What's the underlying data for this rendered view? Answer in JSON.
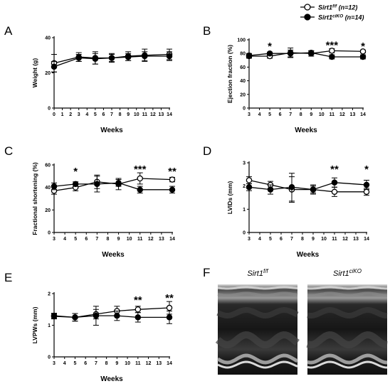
{
  "legend": [
    {
      "name": "Sirt1",
      "sup": "f/f",
      "suffix": " (n=12)",
      "marker": "open"
    },
    {
      "name": "Sirt1",
      "sup": "ciKO",
      "suffix": " (n=14)",
      "marker": "filled"
    }
  ],
  "echo": {
    "label": "F",
    "titles": [
      {
        "name": "Sirt1",
        "sup": "f/f"
      },
      {
        "name": "Sirt1",
        "sup": "ciKO"
      }
    ]
  },
  "chart_data": [
    {
      "label": "A",
      "type": "line",
      "ylabel": "Weight (g)",
      "xlabel": "Weeks",
      "ylim": [
        0,
        40
      ],
      "yticks": [
        0,
        20,
        40
      ],
      "xlim": [
        0,
        14
      ],
      "xticks": [
        0,
        1,
        2,
        3,
        4,
        5,
        6,
        7,
        8,
        9,
        10,
        11,
        12,
        13,
        14
      ],
      "x": [
        0,
        3,
        5,
        7,
        9,
        11,
        14
      ],
      "series": [
        {
          "name": "Sirt1 f/f",
          "marker": "open",
          "values": [
            25.5,
            29,
            28.5,
            28.5,
            29.5,
            30,
            30.5
          ],
          "errors": [
            5,
            2.5,
            3.5,
            2.5,
            2.5,
            3.5,
            3
          ]
        },
        {
          "name": "Sirt1 ciKO",
          "marker": "filled",
          "values": [
            23.5,
            28.5,
            28,
            28.5,
            29,
            29.5,
            29.5
          ],
          "errors": [
            3,
            2,
            3,
            2,
            2,
            2.5,
            2.5
          ]
        }
      ],
      "stars": []
    },
    {
      "label": "B",
      "type": "line",
      "ylabel": "Ejection fraction (%)",
      "xlabel": "Weeks",
      "ylim": [
        0,
        100
      ],
      "yticks": [
        0,
        20,
        40,
        60,
        80,
        100
      ],
      "xlim": [
        3,
        14
      ],
      "xticks": [
        3,
        4,
        5,
        6,
        7,
        8,
        9,
        10,
        11,
        12,
        13,
        14
      ],
      "x": [
        3,
        5,
        7,
        9,
        11,
        14
      ],
      "series": [
        {
          "name": "Sirt1 f/f",
          "marker": "open",
          "values": [
            76,
            76,
            81,
            80,
            84,
            83
          ],
          "errors": [
            3,
            3,
            7,
            4,
            3,
            2
          ]
        },
        {
          "name": "Sirt1 ciKO",
          "marker": "filled",
          "values": [
            77,
            80,
            80,
            81,
            75,
            75
          ],
          "errors": [
            3,
            2,
            5,
            3,
            3,
            3
          ]
        }
      ],
      "stars": [
        {
          "x": 5,
          "text": "*"
        },
        {
          "x": 11,
          "text": "***"
        },
        {
          "x": 14,
          "text": "*"
        }
      ]
    },
    {
      "label": "C",
      "type": "line",
      "ylabel": "Fractional shortening (%)",
      "xlabel": "Weeks",
      "ylim": [
        0,
        60
      ],
      "yticks": [
        0,
        20,
        40,
        60
      ],
      "xlim": [
        3,
        14
      ],
      "xticks": [
        3,
        4,
        5,
        6,
        7,
        8,
        9,
        10,
        11,
        12,
        13,
        14
      ],
      "x": [
        3,
        5,
        7,
        9,
        11,
        14
      ],
      "series": [
        {
          "name": "Sirt1 f/f",
          "marker": "open",
          "values": [
            37,
            40,
            45,
            43,
            48,
            47
          ],
          "errors": [
            3,
            3,
            6,
            5,
            5,
            2
          ]
        },
        {
          "name": "Sirt1 ciKO",
          "marker": "filled",
          "values": [
            41,
            43,
            43,
            44,
            38,
            38
          ],
          "errors": [
            3,
            2,
            7,
            3,
            3,
            3
          ]
        }
      ],
      "stars": [
        {
          "x": 5,
          "text": "*"
        },
        {
          "x": 11,
          "text": "***"
        },
        {
          "x": 14,
          "text": "**"
        }
      ]
    },
    {
      "label": "D",
      "type": "line",
      "ylabel": "LVIDs (mm)",
      "xlabel": "Weeks",
      "ylim": [
        0,
        3
      ],
      "yticks": [
        0,
        1,
        2,
        3
      ],
      "xlim": [
        3,
        14
      ],
      "xticks": [
        3,
        4,
        5,
        6,
        7,
        8,
        9,
        10,
        11,
        12,
        13,
        14
      ],
      "x": [
        3,
        5,
        7,
        9,
        11,
        14
      ],
      "series": [
        {
          "name": "Sirt1 f/f",
          "marker": "open",
          "values": [
            2.25,
            2.05,
            1.85,
            1.85,
            1.75,
            1.75
          ],
          "errors": [
            0.15,
            0.15,
            0.55,
            0.2,
            0.2,
            0.15
          ]
        },
        {
          "name": "Sirt1 ciKO",
          "marker": "filled",
          "values": [
            1.95,
            1.85,
            1.95,
            1.85,
            2.15,
            2.05
          ],
          "errors": [
            0.15,
            0.2,
            0.6,
            0.15,
            0.2,
            0.2
          ]
        }
      ],
      "stars": [
        {
          "x": 11,
          "text": "**"
        },
        {
          "x": 14,
          "text": "*"
        }
      ]
    },
    {
      "label": "E",
      "type": "line",
      "ylabel": "LVPWs (mm)",
      "xlabel": "Weeks",
      "ylim": [
        0,
        2
      ],
      "yticks": [
        0,
        1,
        2
      ],
      "xlim": [
        3,
        14
      ],
      "xticks": [
        3,
        4,
        5,
        6,
        7,
        8,
        9,
        10,
        11,
        12,
        13,
        14
      ],
      "x": [
        3,
        5,
        7,
        9,
        11,
        14
      ],
      "series": [
        {
          "name": "Sirt1 f/f",
          "marker": "open",
          "values": [
            1.3,
            1.25,
            1.35,
            1.45,
            1.5,
            1.55
          ],
          "errors": [
            0.08,
            0.12,
            0.15,
            0.15,
            0.1,
            0.2
          ]
        },
        {
          "name": "Sirt1 ciKO",
          "marker": "filled",
          "values": [
            1.28,
            1.25,
            1.3,
            1.3,
            1.25,
            1.25
          ],
          "errors": [
            0.08,
            0.12,
            0.3,
            0.15,
            0.15,
            0.2
          ]
        }
      ],
      "stars": [
        {
          "x": 11,
          "text": "**"
        },
        {
          "x": 14,
          "text": "**"
        }
      ]
    }
  ]
}
